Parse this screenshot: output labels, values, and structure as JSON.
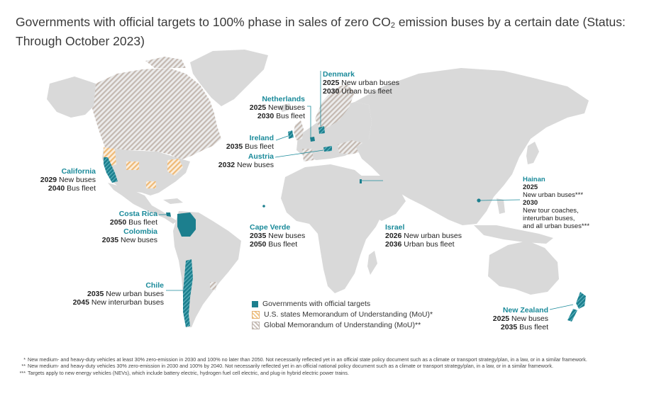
{
  "title": {
    "pre": "Governments with official targets to 100% phase in sales of zero CO",
    "sub": "2",
    "post": " emission buses by a certain date (Status: Through October 2023)"
  },
  "labels": {
    "denmark": {
      "country": "Denmark",
      "lines": [
        {
          "year": "2025",
          "text": " New urban buses"
        },
        {
          "year": "2030",
          "text": " Urban bus fleet"
        }
      ]
    },
    "netherlands": {
      "country": "Netherlands",
      "lines": [
        {
          "year": "2025",
          "text": " New buses"
        },
        {
          "year": "2030",
          "text": " Bus fleet"
        }
      ]
    },
    "ireland": {
      "country": "Ireland",
      "lines": [
        {
          "year": "2035",
          "text": " Bus fleet"
        }
      ]
    },
    "austria": {
      "country": "Austria",
      "lines": [
        {
          "year": "2032",
          "text": " New buses"
        }
      ]
    },
    "california": {
      "country": "California",
      "lines": [
        {
          "year": "2029",
          "text": " New buses"
        },
        {
          "year": "2040",
          "text": " Bus fleet"
        }
      ]
    },
    "costa_rica": {
      "country": "Costa Rica",
      "lines": [
        {
          "year": "2050",
          "text": " Bus fleet"
        }
      ]
    },
    "colombia": {
      "country": "Colombia",
      "lines": [
        {
          "year": "2035",
          "text": " New buses"
        }
      ]
    },
    "cape_verde": {
      "country": "Cape Verde",
      "lines": [
        {
          "year": "2035",
          "text": " New buses"
        },
        {
          "year": "2050",
          "text": " Bus fleet"
        }
      ]
    },
    "israel": {
      "country": "Israel",
      "lines": [
        {
          "year": "2026",
          "text": " New urban buses"
        },
        {
          "year": "2036",
          "text": " Urban bus fleet"
        }
      ]
    },
    "hainan": {
      "country": "Hainan",
      "year1": "2025",
      "text1": "New urban buses***",
      "year2": "2030",
      "text2a": "New tour coaches,",
      "text2b": "interurban buses,",
      "text2c": "and all urban buses***"
    },
    "chile": {
      "country": "Chile",
      "lines": [
        {
          "year": "2035",
          "text": " New urban buses"
        },
        {
          "year": "2045",
          "text": " New interurban buses"
        }
      ]
    },
    "new_zealand": {
      "country": "New Zealand",
      "lines": [
        {
          "year": "2025",
          "text": " New buses"
        },
        {
          "year": "2035",
          "text": " Bus fleet"
        }
      ]
    }
  },
  "legend": {
    "official": "Governments with official targets",
    "us_mou": "U.S. states Memorandum of Understanding (MoU)*",
    "global_mou": "Global Memorandum of Understanding (MoU)**"
  },
  "notes": [
    {
      "mark": "*",
      "text": "New medium- and heavy-duty vehicles at least 30% zero-emission in 2030 and 100% no later than 2050. Not necessarily reflected yet in an official state policy document such as a climate or transport strategy/plan, in a law, or in a similar framework."
    },
    {
      "mark": "**",
      "text": "New medium- and heavy-duty vehicles 30% zero-emission in 2030 and 100% by 2040. Not necessarily reflected yet in an official national policy document such as a climate or transport strategy/plan, in a law, or in a similar framework."
    },
    {
      "mark": "***",
      "text": "Targets apply to new energy vehicles (NEVs), which include battery electric, hydrogen fuel cell electric, and plug-in hybrid electric power trains."
    }
  ],
  "colors": {
    "land": "#d9d9d9",
    "official": "#1c7f8e",
    "us_mou": "#f1c88c",
    "global_mou": "#c9bfb8",
    "label_accent": "#1a8a9a"
  }
}
